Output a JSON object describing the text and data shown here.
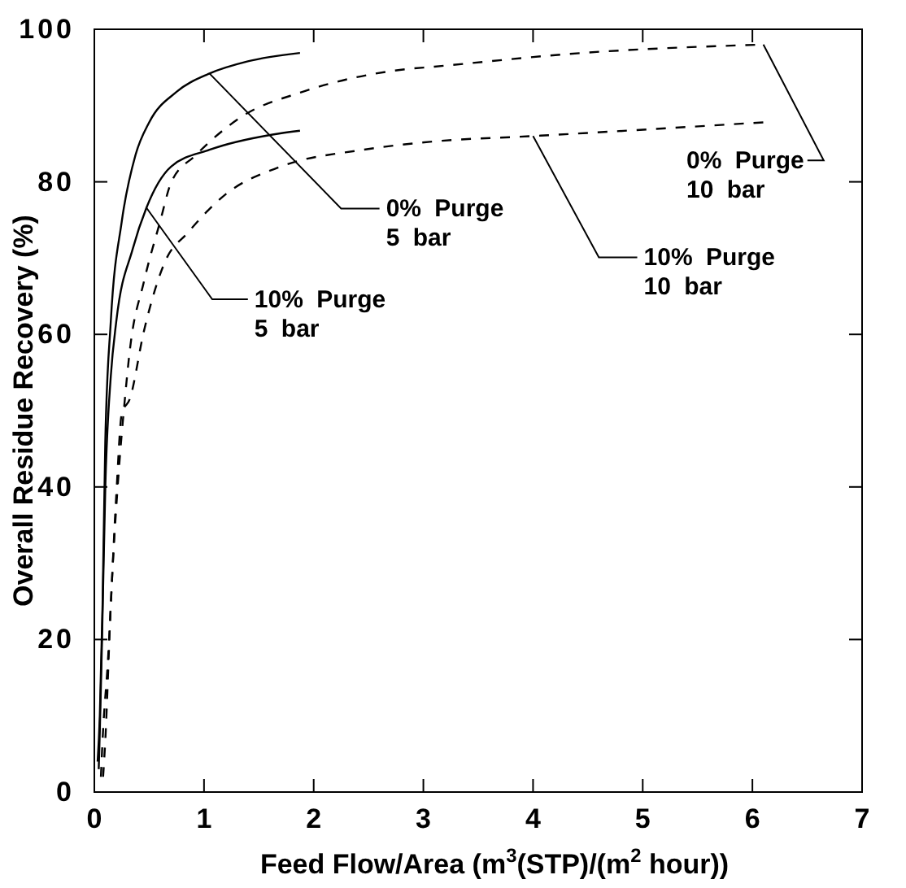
{
  "chart_data": {
    "type": "line",
    "xlabel": "Feed Flow/Area (m$^{3}$(STP)/(m$^{2}$ hour))",
    "ylabel": "Overall Residue Recovery (%)",
    "xlim": [
      0,
      7
    ],
    "ylim": [
      0,
      100
    ],
    "xticks": [
      0,
      1,
      2,
      3,
      4,
      5,
      6,
      7
    ],
    "yticks": [
      0,
      20,
      40,
      60,
      80,
      100
    ],
    "grid": false,
    "marker": "none",
    "annotations": [
      {
        "text": "0% Purge 5 bar",
        "x": 1.05,
        "y": 94.2
      },
      {
        "text": "10% Purge 5 bar",
        "x": 0.475,
        "y": 76.6
      },
      {
        "text": "0% Purge 10 bar",
        "x": 6.1,
        "y": 98
      },
      {
        "text": "10% Purge 10 bar",
        "x": 4,
        "y": 86
      }
    ],
    "series": [
      {
        "color": "#000000",
        "line_style": "solid",
        "x": [
          0.03,
          0.05,
          0.075,
          0.1,
          0.15,
          0.25,
          0.375,
          0.5,
          0.75,
          1.05,
          1.4,
          1.875
        ],
        "values": [
          4,
          10,
          24.6,
          46,
          61.7,
          74.8,
          83.5,
          87.8,
          91.8,
          94.2,
          95.8,
          96.9
        ]
      },
      {
        "color": "#000000",
        "line_style": "solid",
        "x": [
          0.04,
          0.05,
          0.07,
          0.1,
          0.15,
          0.2,
          0.35,
          0.475,
          0.7,
          1.05,
          1.625,
          1.875
        ],
        "values": [
          3,
          8,
          20,
          40,
          54.5,
          61.7,
          71.2,
          76.6,
          82,
          84.2,
          86.2,
          86.7
        ]
      },
      {
        "color": "#000000",
        "line_style": "dashed",
        "x": [
          0.08,
          0.1,
          0.15,
          0.225,
          0.275,
          0.325,
          0.45,
          0.6,
          0.7,
          0.925,
          1.35,
          1.9,
          2.8,
          3.1,
          4.45,
          6.1
        ],
        "values": [
          2,
          6.8,
          24.6,
          42.5,
          51,
          58.1,
          66.8,
          74.8,
          79.9,
          83.5,
          88.6,
          91.8,
          94.7,
          95.1,
          96.9,
          98
        ]
      },
      {
        "color": "#000000",
        "line_style": "dashed",
        "x": [
          0.06,
          0.075,
          0.125,
          0.2,
          0.25,
          0.325,
          0.45,
          0.65,
          0.85,
          1.2,
          1.7,
          2.45,
          3.1,
          4,
          6.1
        ],
        "values": [
          2,
          6.8,
          17.5,
          38.9,
          49.6,
          51.6,
          60.3,
          69.7,
          73.3,
          78.4,
          82,
          84.2,
          85.3,
          86,
          87.8
        ]
      }
    ]
  }
}
